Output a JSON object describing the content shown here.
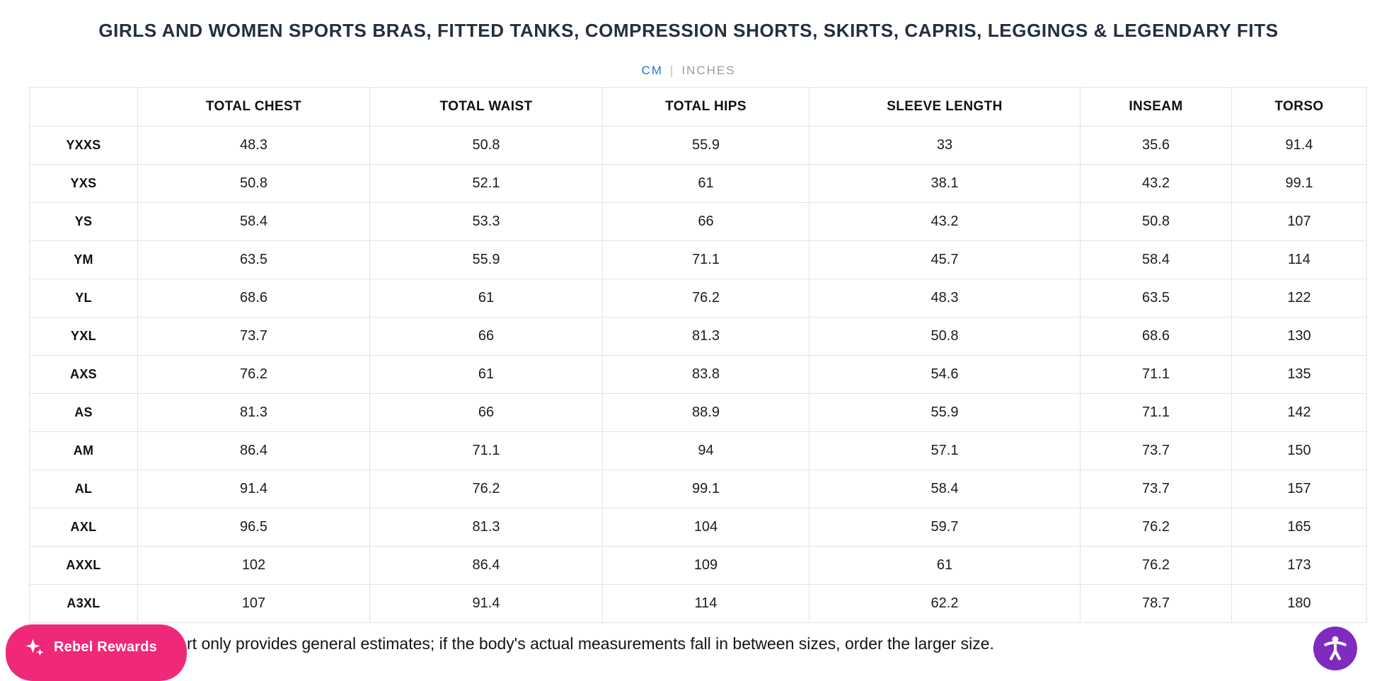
{
  "header": {
    "title": "GIRLS AND WOMEN SPORTS BRAS, FITTED TANKS, COMPRESSION SHORTS, SKIRTS, CAPRIS, LEGGINGS & LEGENDARY FITS",
    "unit_toggle": {
      "cm": "CM",
      "divider": "|",
      "inches": "INCHES",
      "active_unit": "CM"
    }
  },
  "size_table": {
    "columns": [
      "",
      "TOTAL CHEST",
      "TOTAL WAIST",
      "TOTAL HIPS",
      "SLEEVE LENGTH",
      "INSEAM",
      "TORSO"
    ],
    "unit": "cm",
    "rows": [
      {
        "size": "YXXS",
        "values": [
          "48.3",
          "50.8",
          "55.9",
          "33",
          "35.6",
          "91.4"
        ]
      },
      {
        "size": "YXS",
        "values": [
          "50.8",
          "52.1",
          "61",
          "38.1",
          "43.2",
          "99.1"
        ]
      },
      {
        "size": "YS",
        "values": [
          "58.4",
          "53.3",
          "66",
          "43.2",
          "50.8",
          "107"
        ]
      },
      {
        "size": "YM",
        "values": [
          "63.5",
          "55.9",
          "71.1",
          "45.7",
          "58.4",
          "114"
        ]
      },
      {
        "size": "YL",
        "values": [
          "68.6",
          "61",
          "76.2",
          "48.3",
          "63.5",
          "122"
        ]
      },
      {
        "size": "YXL",
        "values": [
          "73.7",
          "66",
          "81.3",
          "50.8",
          "68.6",
          "130"
        ]
      },
      {
        "size": "AXS",
        "values": [
          "76.2",
          "61",
          "83.8",
          "54.6",
          "71.1",
          "135"
        ]
      },
      {
        "size": "AS",
        "values": [
          "81.3",
          "66",
          "88.9",
          "55.9",
          "71.1",
          "142"
        ]
      },
      {
        "size": "AM",
        "values": [
          "86.4",
          "71.1",
          "94",
          "57.1",
          "73.7",
          "150"
        ]
      },
      {
        "size": "AL",
        "values": [
          "91.4",
          "76.2",
          "99.1",
          "58.4",
          "73.7",
          "157"
        ]
      },
      {
        "size": "AXL",
        "values": [
          "96.5",
          "81.3",
          "104",
          "59.7",
          "76.2",
          "165"
        ]
      },
      {
        "size": "AXXL",
        "values": [
          "102",
          "86.4",
          "109",
          "61",
          "76.2",
          "173"
        ]
      },
      {
        "size": "A3XL",
        "values": [
          "107",
          "91.4",
          "114",
          "62.2",
          "78.7",
          "180"
        ]
      }
    ]
  },
  "footer": {
    "note_visible_text": "rt only provides general estimates; if the body's actual measurements fall in between sizes, order the larger size."
  },
  "widgets": {
    "rewards_button_label": "Rebel Rewards"
  },
  "colors": {
    "title_text": "#242f3e",
    "active_unit_blue": "#2176dd",
    "inactive_unit_gray": "#9b9b9b",
    "table_border": "#e4e4e4",
    "rewards_pink": "#f02879",
    "accessibility_purple": "#7f2bbf"
  }
}
